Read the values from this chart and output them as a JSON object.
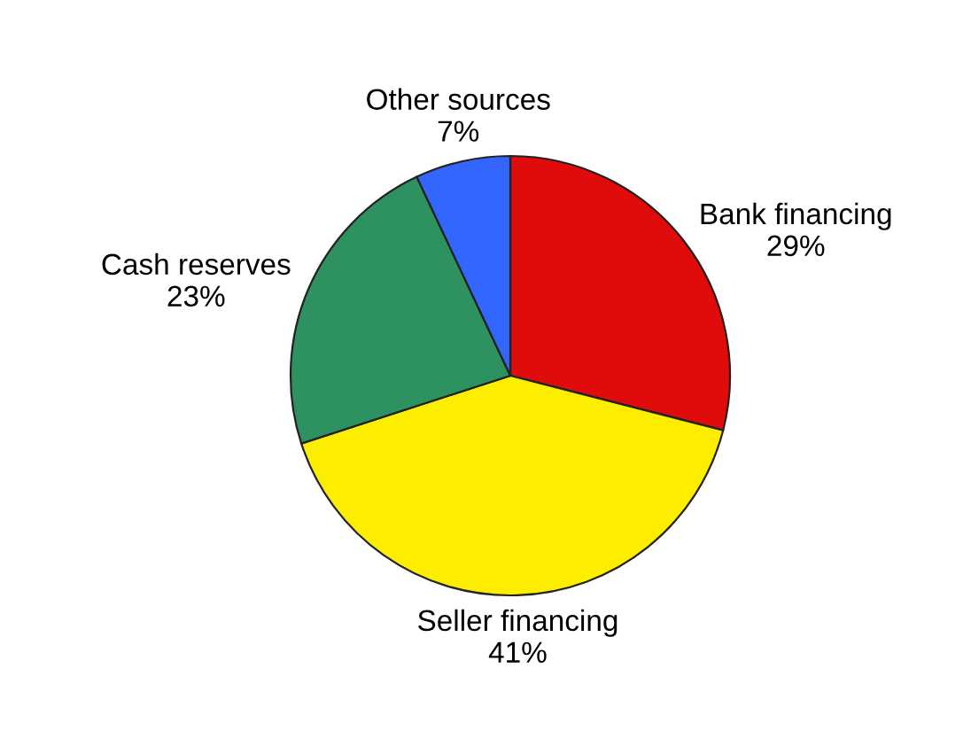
{
  "chart_data": {
    "type": "pie",
    "categories": [
      "Bank financing",
      "Seller financing",
      "Cash reserves",
      "Other sources"
    ],
    "values": [
      29,
      41,
      23,
      7
    ],
    "value_labels": [
      "29%",
      "41%",
      "23%",
      "7%"
    ],
    "colors": [
      "#e00b0b",
      "#fdee00",
      "#2e9160",
      "#3366ff"
    ],
    "legend": false
  }
}
